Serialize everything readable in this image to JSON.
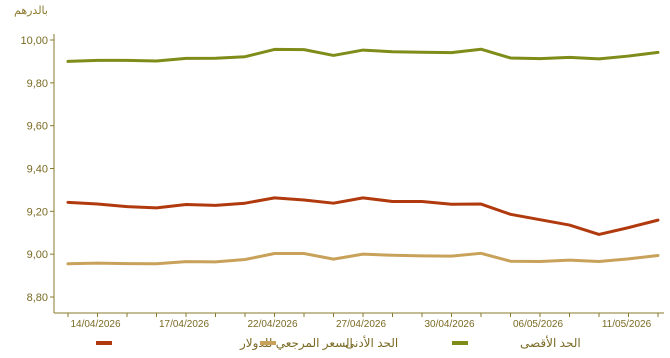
{
  "chart_data": {
    "type": "line",
    "unit_label": "بالدرهم",
    "ylim": [
      8.8,
      10.0
    ],
    "y_ticks": [
      "10,00",
      "9,80",
      "9,60",
      "9,40",
      "9,20",
      "9,00",
      "8,80"
    ],
    "x_tick_labels": [
      "14/04/2026",
      "17/04/2026",
      "22/04/2026",
      "27/04/2026",
      "30/04/2026",
      "06/05/2026",
      "11/05/2026"
    ],
    "x_tick_index": [
      1,
      4,
      7,
      10,
      13,
      16,
      19
    ],
    "series": [
      {
        "name": "الحد الأقصى",
        "color": "#7f8c1a",
        "values": [
          9.9,
          9.905,
          9.905,
          9.902,
          9.914,
          9.915,
          9.922,
          9.956,
          9.955,
          9.928,
          9.953,
          9.945,
          9.943,
          9.941,
          9.957,
          9.916,
          9.913,
          9.919,
          9.912,
          9.925,
          9.942
        ]
      },
      {
        "name": "السعر المرجعي للدولار",
        "color": "#b03a0e",
        "values": [
          9.242,
          9.234,
          9.222,
          9.216,
          9.232,
          9.228,
          9.238,
          9.263,
          9.253,
          9.238,
          9.263,
          9.246,
          9.246,
          9.233,
          9.234,
          9.186,
          9.161,
          9.136,
          9.092,
          9.124,
          9.159
        ]
      },
      {
        "name": "الحد الأدنى",
        "color": "#c8a25a",
        "values": [
          8.955,
          8.958,
          8.956,
          8.955,
          8.965,
          8.964,
          8.975,
          9.003,
          9.003,
          8.977,
          9.0,
          8.995,
          8.992,
          8.991,
          9.004,
          8.967,
          8.966,
          8.972,
          8.966,
          8.978,
          8.994
        ]
      }
    ],
    "legend": [
      "السعر المرجعي للدولار",
      "الحد الأدنى",
      "الحد الأقصى"
    ],
    "legend_position": "bottom",
    "grid": false
  }
}
